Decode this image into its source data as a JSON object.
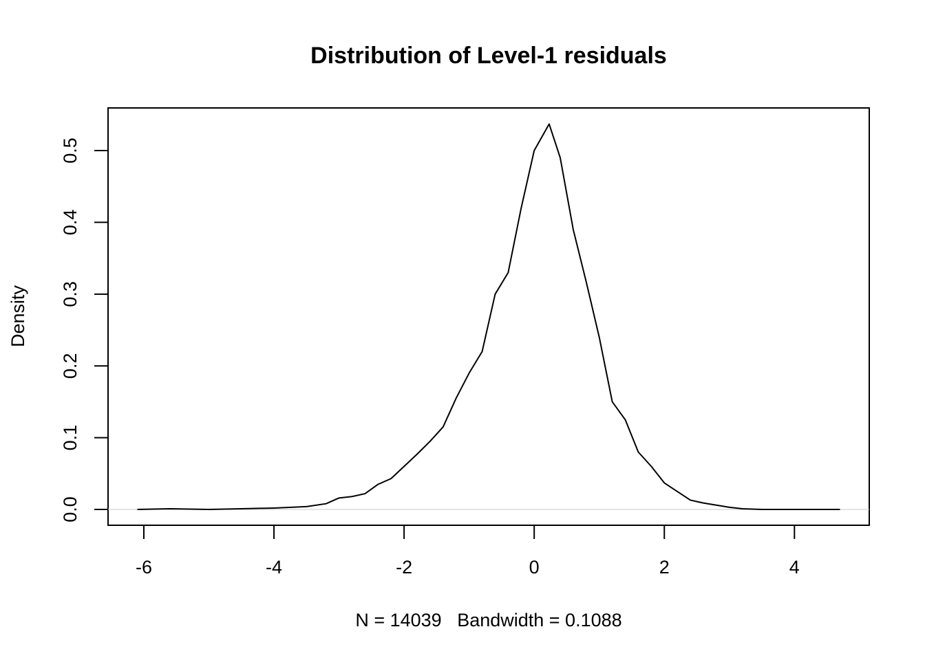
{
  "chart_data": {
    "type": "line",
    "title": "Distribution of Level-1 residuals",
    "xlabel": "N = 14039   Bandwidth = 0.1088",
    "ylabel": "Density",
    "x": [
      -6.1,
      -5.6,
      -5.0,
      -4.5,
      -4.0,
      -3.5,
      -3.2,
      -3.0,
      -2.8,
      -2.6,
      -2.4,
      -2.2,
      -2.0,
      -1.8,
      -1.6,
      -1.4,
      -1.2,
      -1.0,
      -0.8,
      -0.6,
      -0.4,
      -0.2,
      0.0,
      0.23,
      0.4,
      0.6,
      0.8,
      1.0,
      1.2,
      1.4,
      1.6,
      1.8,
      2.0,
      2.2,
      2.4,
      2.6,
      2.8,
      3.0,
      3.2,
      3.5,
      4.0,
      4.5,
      4.7
    ],
    "series": [
      {
        "color": "#000000",
        "values": [
          0,
          0.001,
          0,
          0.001,
          0.002,
          0.004,
          0.008,
          0.016,
          0.018,
          0.022,
          0.035,
          0.043,
          0.06,
          0.077,
          0.095,
          0.115,
          0.155,
          0.19,
          0.22,
          0.3,
          0.33,
          0.42,
          0.5,
          0.537,
          0.49,
          0.39,
          0.317,
          0.24,
          0.15,
          0.125,
          0.08,
          0.06,
          0.037,
          0.025,
          0.013,
          0.009,
          0.006,
          0.003,
          0.001,
          0,
          0,
          0,
          0
        ]
      }
    ],
    "xlim": [
      -6.55,
      5.15
    ],
    "ylim": [
      -0.022,
      0.5594
    ],
    "xticks": [
      -6,
      -4,
      -2,
      0,
      2,
      4
    ],
    "yticks": [
      {
        "value": 0,
        "label": "0.0"
      },
      0.1,
      0.2,
      0.3,
      0.4,
      0.5
    ],
    "zero_line": true
  }
}
